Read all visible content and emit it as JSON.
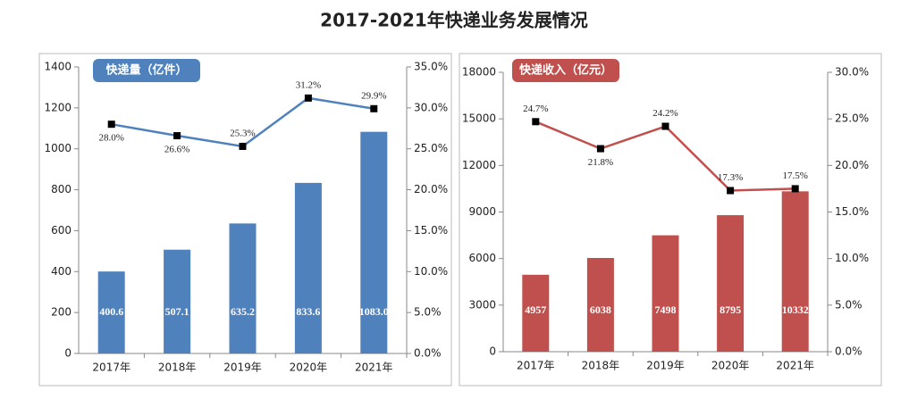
{
  "title": "2017-2021年快递业务发展情况",
  "chart_data": [
    {
      "type": "bar",
      "categories": [
        "2017年",
        "2018年",
        "2019年",
        "2020年",
        "2021年"
      ],
      "series": [
        {
          "name": "快递量（亿件）",
          "color": "#4f81bd",
          "values": [
            400.6,
            507.1,
            635.2,
            833.6,
            1083.0
          ],
          "value_labels": [
            "400.6",
            "507.1",
            "635.2",
            "833.6",
            "1083.0"
          ]
        },
        {
          "type": "line",
          "axis": "y2",
          "color": "#4f81bd",
          "values": [
            28.0,
            26.6,
            25.3,
            31.2,
            29.9
          ],
          "value_labels": [
            "28.0%",
            "26.6%",
            "25.3%",
            "31.2%",
            "29.9%"
          ]
        }
      ],
      "ylim": [
        0,
        1400
      ],
      "yticks": [
        0,
        200,
        400,
        600,
        800,
        1000,
        1200,
        1400
      ],
      "y2lim": [
        0,
        35
      ],
      "y2ticks": [
        {
          "value": 0,
          "label": "0.0%"
        },
        {
          "value": 5,
          "label": "5.0%"
        },
        {
          "value": 10,
          "label": "10.0%"
        },
        {
          "value": 15,
          "label": "15.0%"
        },
        {
          "value": 20,
          "label": "20.0%"
        },
        {
          "value": 25,
          "label": "25.0%"
        },
        {
          "value": 30,
          "label": "30.0%"
        },
        {
          "value": 35,
          "label": "35.0%"
        }
      ],
      "grid": false
    },
    {
      "type": "bar",
      "categories": [
        "2017年",
        "2018年",
        "2019年",
        "2020年",
        "2021年"
      ],
      "series": [
        {
          "name": "快递收入（亿元）",
          "color": "#c0504d",
          "values": [
            4957,
            6038,
            7498,
            8795,
            10332
          ]
        },
        {
          "type": "line",
          "axis": "y2",
          "color": "#c0504d",
          "values": [
            24.7,
            21.8,
            24.2,
            17.3,
            17.5
          ],
          "value_labels": [
            "24.7%",
            "21.8%",
            "24.2%",
            "17.3%",
            "17.5%"
          ]
        }
      ],
      "ylim": [
        0,
        18000
      ],
      "yticks": [
        0,
        3000,
        6000,
        9000,
        12000,
        15000,
        18000
      ],
      "y2lim": [
        0,
        30
      ],
      "y2ticks": [
        {
          "value": 0,
          "label": "0.0%"
        },
        {
          "value": 5,
          "label": "5.0%"
        },
        {
          "value": 10,
          "label": "10.0%"
        },
        {
          "value": 15,
          "label": "15.0%"
        },
        {
          "value": 20,
          "label": "20.0%"
        },
        {
          "value": 25,
          "label": "25.0%"
        },
        {
          "value": 30,
          "label": "30.0%"
        }
      ],
      "grid": false
    }
  ]
}
